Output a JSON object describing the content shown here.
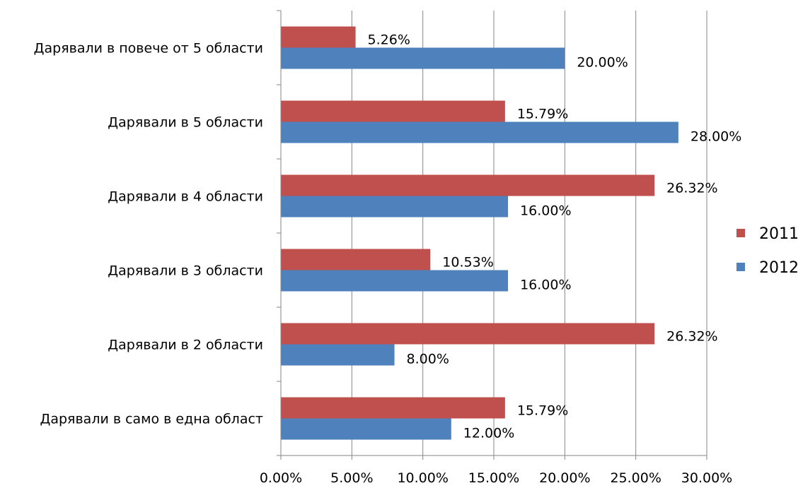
{
  "chart_data": {
    "type": "bar",
    "orientation": "horizontal",
    "categories": [
      "Дарявали в повече от 5 области",
      "Дарявали в 5 области",
      "Дарявали в 4 области",
      "Дарявали в 3 области",
      "Дарявали в 2 области",
      "Дарявали в само в една област"
    ],
    "series": [
      {
        "name": "2011",
        "color": "#c0504d",
        "values": [
          5.26,
          15.79,
          26.32,
          10.53,
          26.32,
          15.79
        ],
        "labels": [
          "5.26%",
          "15.79%",
          "26.32%",
          "10.53%",
          "26.32%",
          "15.79%"
        ]
      },
      {
        "name": "2012",
        "color": "#4f81bd",
        "values": [
          20.0,
          28.0,
          16.0,
          16.0,
          8.0,
          12.0
        ],
        "labels": [
          "20.00%",
          "28.00%",
          "16.00%",
          "16.00%",
          "8.00%",
          "12.00%"
        ]
      }
    ],
    "xlim": [
      0,
      30
    ],
    "xticks": [
      0,
      5,
      10,
      15,
      20,
      25,
      30
    ],
    "xtick_labels": [
      "0.00%",
      "5.00%",
      "10.00%",
      "15.00%",
      "20.00%",
      "25.00%",
      "30.00%"
    ],
    "grid": "vertical",
    "legend": "right",
    "title": "",
    "xlabel": "",
    "ylabel": ""
  }
}
